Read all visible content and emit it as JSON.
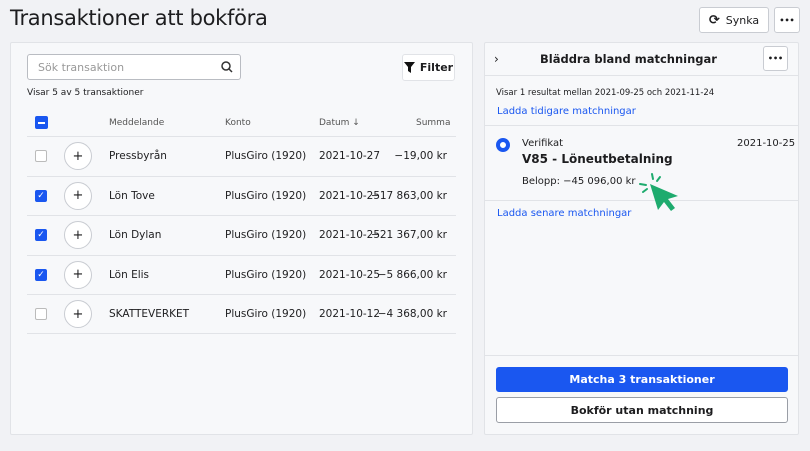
{
  "header": {
    "title": "Transaktioner att bokföra",
    "sync_label": "Synka",
    "more_label": "•••"
  },
  "left": {
    "search_placeholder": "Sök transaktion",
    "filter_label": "Filter",
    "count_text": "Visar 5 av 5 transaktioner",
    "columns": {
      "message": "Meddelande",
      "account": "Konto",
      "date": "Datum ↓",
      "amount": "Summa"
    },
    "rows": [
      {
        "checked": false,
        "message": "Pressbyrån",
        "account": "PlusGiro (1920)",
        "date": "2021-10-27",
        "amount": "−19,00 kr"
      },
      {
        "checked": true,
        "message": "Lön Tove",
        "account": "PlusGiro (1920)",
        "date": "2021-10-25",
        "amount": "−17 863,00 kr"
      },
      {
        "checked": true,
        "message": "Lön Dylan",
        "account": "PlusGiro (1920)",
        "date": "2021-10-25",
        "amount": "−21 367,00 kr"
      },
      {
        "checked": true,
        "message": "Lön Elis",
        "account": "PlusGiro (1920)",
        "date": "2021-10-25",
        "amount": "−5 866,00 kr"
      },
      {
        "checked": false,
        "message": "SKATTEVERKET",
        "account": "PlusGiro (1920)",
        "date": "2021-10-12",
        "amount": "−4 368,00 kr"
      }
    ]
  },
  "right": {
    "title": "Bläddra bland matchningar",
    "more_label": "•••",
    "result_text": "Visar 1 resultat mellan 2021-09-25 och 2021-11-24",
    "load_earlier": "Ladda tidigare matchningar",
    "match": {
      "type": "Verifikat",
      "title": "V85 - Löneutbetalning",
      "date": "2021-10-25",
      "amount": "Belopp: −45 096,00 kr"
    },
    "load_later": "Ladda senare matchningar",
    "match_button": "Matcha 3 transaktioner",
    "book_button": "Bokför utan matchning"
  },
  "colors": {
    "accent": "#1a57f0",
    "cursor": "#1eab6e"
  }
}
